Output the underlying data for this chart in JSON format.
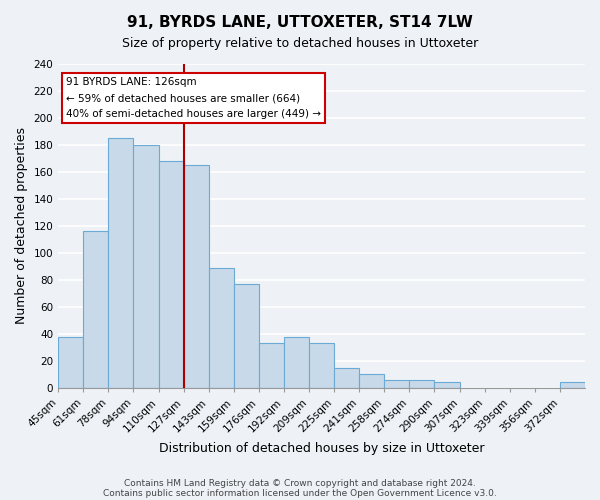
{
  "title": "91, BYRDS LANE, UTTOXETER, ST14 7LW",
  "subtitle": "Size of property relative to detached houses in Uttoxeter",
  "xlabel": "Distribution of detached houses by size in Uttoxeter",
  "ylabel": "Number of detached properties",
  "footer_lines": [
    "Contains HM Land Registry data © Crown copyright and database right 2024.",
    "Contains public sector information licensed under the Open Government Licence v3.0."
  ],
  "bin_labels": [
    "45sqm",
    "61sqm",
    "78sqm",
    "94sqm",
    "110sqm",
    "127sqm",
    "143sqm",
    "159sqm",
    "176sqm",
    "192sqm",
    "209sqm",
    "225sqm",
    "241sqm",
    "258sqm",
    "274sqm",
    "290sqm",
    "307sqm",
    "323sqm",
    "339sqm",
    "356sqm",
    "372sqm"
  ],
  "bar_heights": [
    38,
    116,
    185,
    180,
    168,
    165,
    89,
    77,
    33,
    38,
    33,
    15,
    10,
    6,
    6,
    4,
    0,
    0,
    0,
    0,
    4
  ],
  "bar_color": "#c8d9ea",
  "bar_edge_color": "#6aaad4",
  "annotation_title": "91 BYRDS LANE: 126sqm",
  "annotation_line1": "← 59% of detached houses are smaller (664)",
  "annotation_line2": "40% of semi-detached houses are larger (449) →",
  "redline_bin_index": 5,
  "ylim": [
    0,
    240
  ],
  "yticks": [
    0,
    20,
    40,
    60,
    80,
    100,
    120,
    140,
    160,
    180,
    200,
    220,
    240
  ],
  "background_color": "#eef2f7",
  "plot_bg_color": "#eef2f7",
  "grid_color": "#ffffff",
  "annotation_box_color": "#ffffff",
  "annotation_box_edge": "#cc0000",
  "redline_color": "#aa0000",
  "title_fontsize": 11,
  "subtitle_fontsize": 9,
  "axis_label_fontsize": 9,
  "tick_fontsize": 7.5,
  "footer_fontsize": 6.5
}
